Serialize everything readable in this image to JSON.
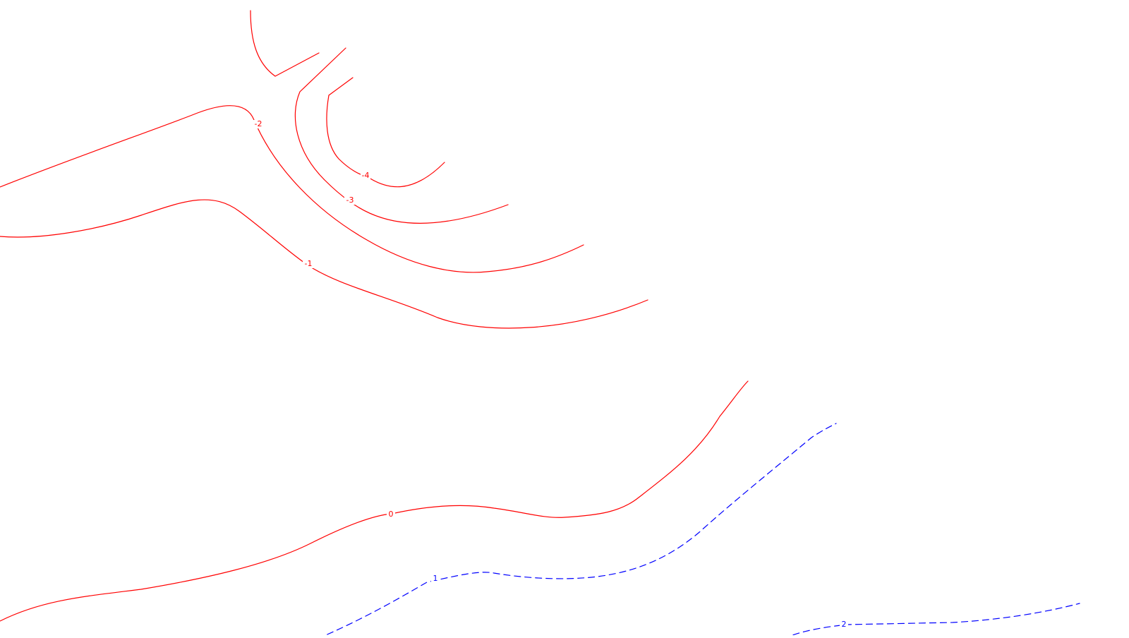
{
  "map": {
    "colors": {
      "background": "#ffffff",
      "negative_contour": "#ff0000",
      "zero_contour": "#ff0000",
      "positive_contour": "#0000ff"
    },
    "line_styles": {
      "negative": "solid",
      "zero": "solid",
      "positive": "dashed"
    },
    "contours": [
      {
        "level": -4,
        "label": "-4",
        "sign": "negative"
      },
      {
        "level": -3,
        "label": "-3",
        "sign": "negative"
      },
      {
        "level": -2,
        "label": "-2",
        "sign": "negative"
      },
      {
        "level": -1,
        "label": "-1",
        "sign": "negative"
      },
      {
        "level": 0,
        "label": "0",
        "sign": "zero"
      },
      {
        "level": 1,
        "label": "1",
        "sign": "positive"
      },
      {
        "level": 2,
        "label": "2",
        "sign": "positive"
      }
    ]
  }
}
